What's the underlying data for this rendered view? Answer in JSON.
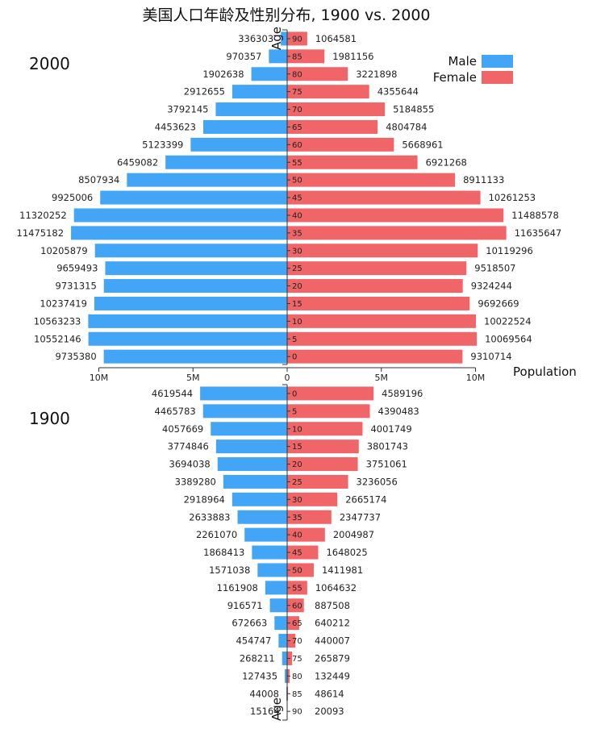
{
  "chart_data": {
    "type": "bar",
    "orientation": "horizontal-diverging",
    "title": "美国人口年龄及性别分布, 1900 vs. 2000",
    "axis_labels": {
      "x": "Population",
      "y": "Age"
    },
    "x_ticks": [
      {
        "value": -10000000,
        "label": "10M"
      },
      {
        "value": -5000000,
        "label": "5M"
      },
      {
        "value": 0,
        "label": "0"
      },
      {
        "value": 5000000,
        "label": "5M"
      },
      {
        "value": 10000000,
        "label": "10M"
      }
    ],
    "legend": {
      "placement": "top-right",
      "items": [
        {
          "name": "Male",
          "color": "#42a5f5"
        },
        {
          "name": "Female",
          "color": "#ef6568"
        }
      ]
    },
    "colors": {
      "male": "#42a5f5",
      "female": "#ef6568"
    },
    "panels": [
      {
        "year": "2000",
        "age_order": "descending",
        "ages": [
          "90",
          "85",
          "80",
          "75",
          "70",
          "65",
          "60",
          "55",
          "50",
          "45",
          "40",
          "35",
          "30",
          "25",
          "20",
          "15",
          "10",
          "5",
          "0"
        ],
        "male": [
          336303,
          970357,
          1902638,
          2912655,
          3792145,
          4453623,
          5123399,
          6459082,
          8507934,
          9925006,
          11320252,
          11475182,
          10205879,
          9659493,
          9731315,
          10237419,
          10563233,
          10552146,
          9735380
        ],
        "female": [
          1064581,
          1981156,
          3221898,
          4355644,
          5184855,
          4804784,
          5668961,
          6921268,
          8911133,
          10261253,
          11488578,
          11635647,
          10119296,
          9518507,
          9324244,
          9692669,
          10022524,
          10069564,
          9310714
        ]
      },
      {
        "year": "1900",
        "age_order": "ascending",
        "ages": [
          "0",
          "5",
          "10",
          "15",
          "20",
          "25",
          "30",
          "35",
          "40",
          "45",
          "50",
          "55",
          "60",
          "65",
          "70",
          "75",
          "80",
          "85",
          "90"
        ],
        "male": [
          4619544,
          4465783,
          4057669,
          3774846,
          3694038,
          3389280,
          2918964,
          2633883,
          2261070,
          1868413,
          1571038,
          1161908,
          916571,
          672663,
          454747,
          268211,
          127435,
          44008,
          15164
        ],
        "female": [
          4589196,
          4390483,
          4001749,
          3801743,
          3751061,
          3236056,
          2665174,
          2347737,
          2004987,
          1648025,
          1411981,
          1064632,
          887508,
          640212,
          440007,
          265879,
          132449,
          48614,
          20093
        ]
      }
    ]
  }
}
